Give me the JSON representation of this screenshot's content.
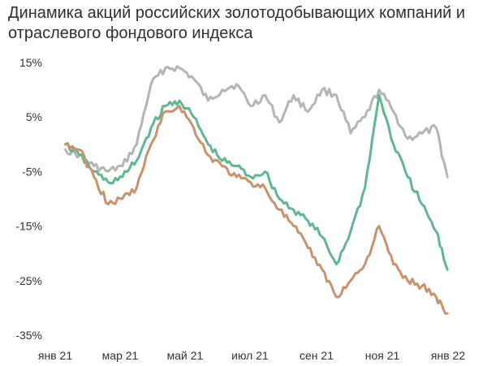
{
  "title": "Динамика акций российских золотодобывающих компаний и отраслевого фондового индекса",
  "chart_data": {
    "type": "line",
    "title": "Динамика акций российских золотодобывающих компаний и отраслевого фондового индекса",
    "xlabel": "",
    "ylabel": "",
    "x_ticks": [
      "янв 21",
      "мар 21",
      "май 21",
      "июл 21",
      "сен 21",
      "ноя 21",
      "янв 22"
    ],
    "y_ticks": [
      "15%",
      "5%",
      "-5%",
      "-15%",
      "-25%",
      "-35%"
    ],
    "ylim": [
      -35,
      15
    ],
    "grid": false,
    "legend": "none",
    "x": [
      "2021-01-11",
      "2021-01-25",
      "2021-02-08",
      "2021-02-22",
      "2021-03-08",
      "2021-03-22",
      "2021-04-05",
      "2021-04-19",
      "2021-05-03",
      "2021-05-17",
      "2021-05-31",
      "2021-06-14",
      "2021-06-28",
      "2021-07-12",
      "2021-07-26",
      "2021-08-09",
      "2021-08-23",
      "2021-09-06",
      "2021-09-20",
      "2021-10-04",
      "2021-10-18",
      "2021-11-01",
      "2021-11-15",
      "2021-11-29",
      "2021-12-13",
      "2021-12-27",
      "2022-01-10",
      "2022-01-21"
    ],
    "series": [
      {
        "color": "#b4b4b4",
        "values": [
          -1,
          -2,
          -4,
          -5,
          -4,
          0,
          11,
          14,
          14,
          12,
          8,
          10,
          11,
          7,
          9,
          4,
          9,
          6,
          10,
          9,
          2,
          5,
          10,
          6,
          1,
          2,
          3,
          -6
        ]
      },
      {
        "color": "#5fb68f",
        "values": [
          0,
          -2,
          -5,
          -7,
          -6,
          -3,
          3,
          7,
          8,
          5,
          0,
          -3,
          -4,
          -6,
          -5,
          -10,
          -12,
          -14,
          -17,
          -22,
          -16,
          -8,
          9,
          0,
          -6,
          -11,
          -16,
          -23
        ]
      },
      {
        "color": "#c9916c",
        "values": [
          0,
          -1,
          -6,
          -11,
          -10,
          -8,
          0,
          6,
          7,
          3,
          -2,
          -4,
          -6,
          -7,
          -8,
          -12,
          -15,
          -19,
          -23,
          -28,
          -25,
          -22,
          -15,
          -22,
          -25,
          -26,
          -28,
          -31
        ]
      }
    ]
  }
}
